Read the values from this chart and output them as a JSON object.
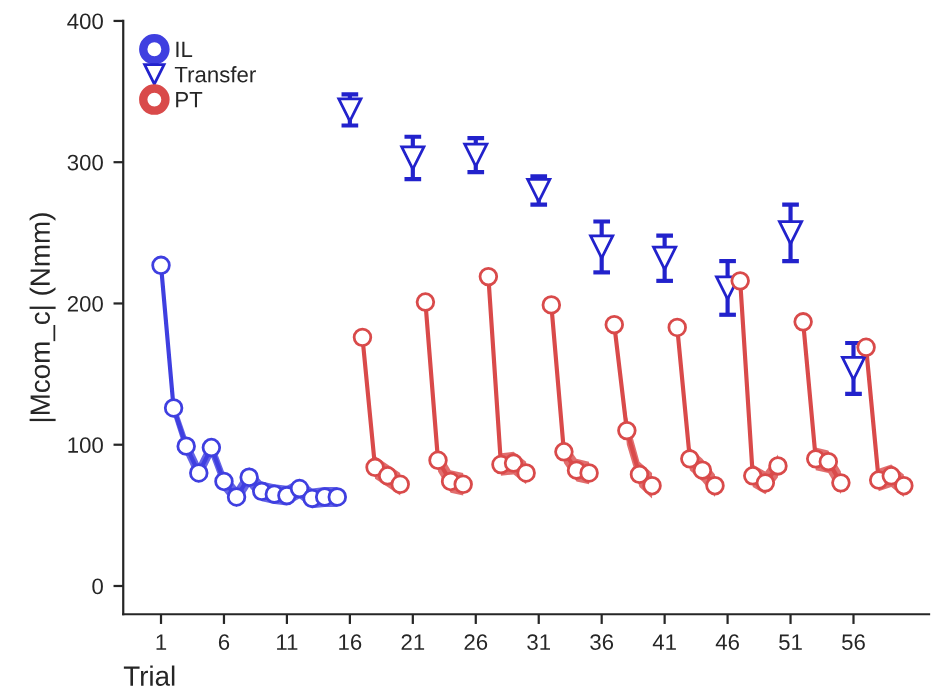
{
  "chart_data": {
    "type": "line",
    "xlabel": "Trial",
    "ylabel": "|Mcom_c| (Nmm)",
    "xlim": [
      -2,
      62
    ],
    "ylim": [
      -20,
      400
    ],
    "xticks": [
      1,
      6,
      11,
      16,
      21,
      26,
      31,
      36,
      41,
      46,
      51,
      56
    ],
    "yticks": [
      0,
      100,
      200,
      300,
      400
    ],
    "legend": "top left",
    "grid": false,
    "marker": "circle",
    "series": [
      {
        "name": "IL",
        "color": "#3f3fe0",
        "x": [
          1,
          2,
          3,
          4,
          5,
          6,
          7,
          8,
          9,
          10,
          11,
          12,
          13,
          14,
          15
        ],
        "values": [
          227,
          126,
          99,
          80,
          98,
          74,
          63,
          77,
          67,
          65,
          64,
          69,
          62,
          63,
          63
        ],
        "lower": [
          227,
          120,
          92,
          73,
          91,
          67,
          56,
          70,
          60,
          58,
          57,
          62,
          55,
          56,
          56
        ],
        "upper": [
          227,
          132,
          106,
          87,
          105,
          81,
          70,
          84,
          74,
          72,
          71,
          76,
          69,
          70,
          70
        ]
      },
      {
        "name": "Transfer",
        "type": "scatter",
        "marker": "triangle",
        "color": "#2222cc",
        "x": [
          16,
          21,
          26,
          31,
          36,
          41,
          46,
          51,
          56
        ],
        "values": [
          337,
          303,
          305,
          280,
          240,
          232,
          211,
          250,
          154
        ],
        "errors": [
          11,
          15,
          12,
          10,
          18,
          16,
          19,
          20,
          18
        ]
      },
      {
        "name": "PT",
        "color": "#d94a4a",
        "x": [
          17,
          18,
          19,
          20,
          21,
          22,
          23,
          24,
          25,
          26,
          27,
          28,
          29,
          30,
          31,
          32,
          33,
          34,
          35,
          36,
          37,
          38,
          39,
          40,
          41,
          42,
          43,
          44,
          45,
          46,
          47,
          48,
          49,
          50,
          51,
          52,
          53,
          54,
          55,
          56,
          57,
          58,
          59,
          60
        ],
        "values": [
          176,
          84,
          78,
          72,
          null,
          201,
          89,
          74,
          72,
          null,
          219,
          86,
          87,
          80,
          null,
          199,
          95,
          82,
          80,
          null,
          185,
          110,
          79,
          71,
          null,
          183,
          90,
          82,
          71,
          null,
          216,
          78,
          73,
          85,
          null,
          187,
          90,
          88,
          73,
          null,
          169,
          75,
          78,
          71
        ],
        "lower": [
          176,
          76,
          70,
          64,
          null,
          201,
          81,
          66,
          64,
          null,
          219,
          78,
          79,
          72,
          null,
          199,
          87,
          74,
          72,
          null,
          185,
          100,
          70,
          62,
          null,
          183,
          82,
          74,
          63,
          null,
          216,
          70,
          65,
          77,
          null,
          187,
          82,
          80,
          65,
          null,
          169,
          67,
          70,
          63
        ],
        "upper": [
          176,
          92,
          86,
          80,
          null,
          201,
          97,
          82,
          80,
          null,
          219,
          94,
          95,
          88,
          null,
          199,
          103,
          90,
          88,
          null,
          185,
          120,
          88,
          80,
          null,
          183,
          98,
          90,
          79,
          null,
          216,
          86,
          81,
          93,
          null,
          187,
          98,
          96,
          81,
          null,
          169,
          83,
          86,
          79
        ]
      }
    ]
  }
}
